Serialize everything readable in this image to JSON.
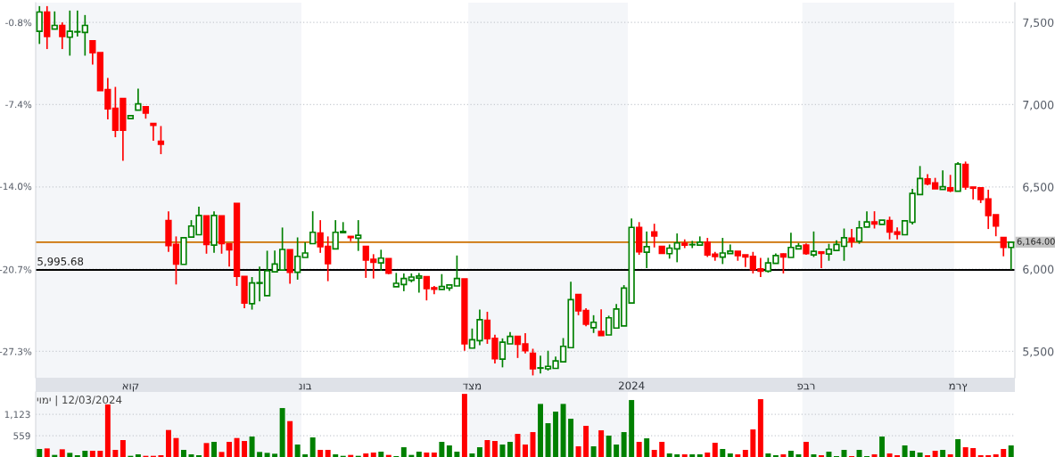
{
  "chart_data": [
    {
      "type": "candlestick",
      "annotations": [
        "יומי | 12/03/2024"
      ],
      "categories": [
        null,
        null,
        null,
        null,
        null,
        null,
        null,
        null,
        null,
        null,
        null,
        null,
        "אוק",
        null,
        null,
        null,
        null,
        null,
        null,
        null,
        null,
        null,
        null,
        null,
        null,
        null,
        null,
        null,
        null,
        null,
        null,
        null,
        null,
        null,
        null,
        "נוב",
        null,
        null,
        null,
        null,
        null,
        null,
        null,
        null,
        null,
        null,
        null,
        null,
        null,
        null,
        null,
        null,
        null,
        null,
        null,
        null,
        null,
        "דצמ",
        null,
        null,
        null,
        null,
        null,
        null,
        null,
        null,
        null,
        null,
        null,
        null,
        null,
        null,
        null,
        null,
        null,
        null,
        null,
        null,
        "2024",
        null,
        null,
        null,
        null,
        null,
        null,
        null,
        null,
        null,
        null,
        null,
        null,
        null,
        null,
        null,
        null,
        null,
        null,
        null,
        null,
        null,
        null,
        "פבר",
        null,
        null,
        null,
        null,
        null,
        null,
        null,
        null,
        null,
        null,
        null,
        null,
        null,
        null,
        null,
        null,
        null,
        null,
        null,
        "מרץ",
        null,
        null,
        null,
        null,
        null,
        null,
        null
      ],
      "ohlc": [
        [
          7446,
          7599,
          7369,
          7563
        ],
        [
          7563,
          7599,
          7338,
          7414
        ],
        [
          7460,
          7567,
          7460,
          7482
        ],
        [
          7482,
          7500,
          7338,
          7414
        ],
        [
          7410,
          7572,
          7298,
          7446
        ],
        [
          7442,
          7572,
          7414,
          7444
        ],
        [
          7439,
          7545,
          7298,
          7482
        ],
        [
          7388,
          7388,
          7244,
          7316
        ],
        [
          7316,
          7316,
          7086,
          7086
        ],
        [
          7091,
          7162,
          6910,
          6974
        ],
        [
          6978,
          7108,
          6802,
          6845
        ],
        [
          7037,
          7037,
          6659,
          6845
        ],
        [
          6915,
          6933,
          6915,
          6933
        ],
        [
          6967,
          7097,
          6967,
          7005
        ],
        [
          6987,
          6987,
          6915,
          6949
        ],
        [
          6886,
          6886,
          6780,
          6874
        ],
        [
          6778,
          6870,
          6699,
          6760
        ],
        [
          6296,
          6352,
          6105,
          6143
        ],
        [
          6150,
          6199,
          5907,
          6031
        ],
        [
          6029,
          6191,
          6029,
          6191
        ],
        [
          6195,
          6298,
          6195,
          6262
        ],
        [
          6209,
          6380,
          6209,
          6326
        ],
        [
          6324,
          6324,
          6094,
          6150
        ],
        [
          6146,
          6352,
          6099,
          6326
        ],
        [
          6324,
          6324,
          6094,
          6155
        ],
        [
          6155,
          6155,
          6015,
          6118
        ],
        [
          6400,
          6400,
          5898,
          5956
        ],
        [
          5956,
          5956,
          5763,
          5794
        ],
        [
          5790,
          5952,
          5754,
          5916
        ],
        [
          5914,
          6015,
          5804,
          5918
        ],
        [
          5839,
          6112,
          5839,
          5990
        ],
        [
          5984,
          6113,
          5984,
          6031
        ],
        [
          5995,
          6253,
          5995,
          6120
        ],
        [
          6118,
          6118,
          5911,
          5981
        ],
        [
          5981,
          6193,
          5936,
          6078
        ],
        [
          6071,
          6163,
          6071,
          6098
        ],
        [
          6155,
          6352,
          6155,
          6224
        ],
        [
          6219,
          6298,
          6099,
          6136
        ],
        [
          6138,
          6199,
          5927,
          6033
        ],
        [
          6123,
          6298,
          6123,
          6224
        ],
        [
          6222,
          6286,
          6222,
          6229
        ],
        [
          6199,
          6199,
          6170,
          6192
        ],
        [
          6188,
          6298,
          6111,
          6206
        ],
        [
          6138,
          6138,
          5947,
          6055
        ],
        [
          6060,
          6091,
          5943,
          6042
        ],
        [
          6038,
          6118,
          5990,
          6067
        ],
        [
          6064,
          6064,
          5969,
          5976
        ],
        [
          5893,
          5977,
          5893,
          5914
        ],
        [
          5907,
          5974,
          5866,
          5943
        ],
        [
          5932,
          5974,
          5920,
          5952
        ],
        [
          5946,
          5977,
          5857,
          5958
        ],
        [
          5954,
          5954,
          5810,
          5882
        ],
        [
          5887,
          5898,
          5848,
          5878
        ],
        [
          5877,
          5970,
          5877,
          5894
        ],
        [
          5885,
          5904,
          5868,
          5904
        ],
        [
          5898,
          6083,
          5898,
          5943
        ],
        [
          5941,
          5941,
          5504,
          5546
        ],
        [
          5520,
          5639,
          5520,
          5571
        ],
        [
          5565,
          5754,
          5538,
          5693
        ],
        [
          5689,
          5741,
          5546,
          5578
        ],
        [
          5579,
          5601,
          5426,
          5455
        ],
        [
          5453,
          5579,
          5403,
          5556
        ],
        [
          5546,
          5617,
          5546,
          5591
        ],
        [
          5591,
          5591,
          5460,
          5544
        ],
        [
          5546,
          5611,
          5487,
          5504
        ],
        [
          5489,
          5516,
          5354,
          5394
        ],
        [
          5398,
          5474,
          5366,
          5400
        ],
        [
          5394,
          5504,
          5383,
          5409
        ],
        [
          5397,
          5469,
          5397,
          5442
        ],
        [
          5437,
          5581,
          5437,
          5531
        ],
        [
          5523,
          5923,
          5523,
          5815
        ],
        [
          5846,
          5846,
          5720,
          5747
        ],
        [
          5749,
          5763,
          5653,
          5666
        ],
        [
          5644,
          5720,
          5612,
          5677
        ],
        [
          5621,
          5756,
          5597,
          5597
        ],
        [
          5600,
          5717,
          5600,
          5704
        ],
        [
          5642,
          5788,
          5642,
          5758
        ],
        [
          5655,
          5903,
          5655,
          5885
        ],
        [
          5794,
          6308,
          5794,
          6254
        ],
        [
          6254,
          6286,
          6087,
          6105
        ],
        [
          6103,
          6229,
          6006,
          6137
        ],
        [
          6227,
          6276,
          6132,
          6202
        ],
        [
          6138,
          6138,
          6096,
          6096
        ],
        [
          6094,
          6150,
          6064,
          6128
        ],
        [
          6123,
          6217,
          6042,
          6159
        ],
        [
          6157,
          6181,
          6128,
          6146
        ],
        [
          6148,
          6172,
          6128,
          6150
        ],
        [
          6146,
          6199,
          6146,
          6164
        ],
        [
          6164,
          6190,
          6074,
          6087
        ],
        [
          6091,
          6105,
          6051,
          6077
        ],
        [
          6073,
          6190,
          6031,
          6098
        ],
        [
          6095,
          6150,
          6095,
          6110
        ],
        [
          6108,
          6108,
          6051,
          6083
        ],
        [
          6087,
          6087,
          6013,
          6074
        ],
        [
          6078,
          6105,
          5974,
          5997
        ],
        [
          6001,
          6069,
          5952,
          5988
        ],
        [
          5988,
          6069,
          5979,
          6038
        ],
        [
          6035,
          6096,
          6035,
          6083
        ],
        [
          6092,
          6096,
          5974,
          6074
        ],
        [
          6071,
          6222,
          6071,
          6132
        ],
        [
          6123,
          6159,
          6123,
          6141
        ],
        [
          6146,
          6157,
          6087,
          6094
        ],
        [
          6087,
          6229,
          6074,
          6108
        ],
        [
          6105,
          6105,
          6006,
          6096
        ],
        [
          6092,
          6154,
          6051,
          6121
        ],
        [
          6114,
          6175,
          6114,
          6150
        ],
        [
          6139,
          6247,
          6051,
          6191
        ],
        [
          6188,
          6244,
          6132,
          6168
        ],
        [
          6170,
          6294,
          6154,
          6251
        ],
        [
          6256,
          6352,
          6256,
          6287
        ],
        [
          6287,
          6352,
          6247,
          6274
        ],
        [
          6272,
          6298,
          6272,
          6298
        ],
        [
          6296,
          6319,
          6181,
          6226
        ],
        [
          6227,
          6254,
          6181,
          6213
        ],
        [
          6209,
          6294,
          6209,
          6294
        ],
        [
          6285,
          6488,
          6272,
          6460
        ],
        [
          6454,
          6627,
          6454,
          6551
        ],
        [
          6549,
          6578,
          6510,
          6519
        ],
        [
          6524,
          6555,
          6488,
          6488
        ],
        [
          6485,
          6600,
          6485,
          6501
        ],
        [
          6495,
          6573,
          6468,
          6477
        ],
        [
          6474,
          6650,
          6474,
          6639
        ],
        [
          6636,
          6654,
          6483,
          6499
        ],
        [
          6499,
          6499,
          6424,
          6492
        ],
        [
          6495,
          6495,
          6402,
          6424
        ],
        [
          6427,
          6483,
          6244,
          6326
        ],
        [
          6330,
          6330,
          6200,
          6263
        ],
        [
          6192,
          6192,
          6078,
          6132
        ],
        [
          6132,
          6164,
          5996,
          6164
        ]
      ],
      "colors": [
        "#008000",
        "#ff0000",
        "#008000",
        "#ff0000",
        "#008000",
        "#008000",
        "#008000",
        "#ff0000",
        "#ff0000",
        "#ff0000",
        "#ff0000",
        "#ff0000",
        "#008000",
        "#008000",
        "#ff0000",
        "#ff0000",
        "#ff0000",
        "#ff0000",
        "#ff0000",
        "#008000",
        "#008000",
        "#008000",
        "#ff0000",
        "#008000",
        "#ff0000",
        "#ff0000",
        "#ff0000",
        "#ff0000",
        "#008000",
        "#008000",
        "#008000",
        "#008000",
        "#008000",
        "#ff0000",
        "#008000",
        "#008000",
        "#008000",
        "#ff0000",
        "#ff0000",
        "#008000",
        "#008000",
        "#ff0000",
        "#008000",
        "#ff0000",
        "#ff0000",
        "#008000",
        "#ff0000",
        "#008000",
        "#008000",
        "#008000",
        "#008000",
        "#ff0000",
        "#ff0000",
        "#008000",
        "#008000",
        "#008000",
        "#ff0000",
        "#008000",
        "#008000",
        "#ff0000",
        "#ff0000",
        "#008000",
        "#008000",
        "#ff0000",
        "#ff0000",
        "#ff0000",
        "#008000",
        "#008000",
        "#008000",
        "#008000",
        "#008000",
        "#ff0000",
        "#ff0000",
        "#008000",
        "#ff0000",
        "#008000",
        "#008000",
        "#008000",
        "#008000",
        "#ff0000",
        "#008000",
        "#ff0000",
        "#ff0000",
        "#008000",
        "#008000",
        "#ff0000",
        "#008000",
        "#008000",
        "#ff0000",
        "#ff0000",
        "#008000",
        "#008000",
        "#ff0000",
        "#ff0000",
        "#ff0000",
        "#ff0000",
        "#008000",
        "#008000",
        "#ff0000",
        "#008000",
        "#008000",
        "#ff0000",
        "#008000",
        "#ff0000",
        "#008000",
        "#008000",
        "#008000",
        "#ff0000",
        "#008000",
        "#008000",
        "#ff0000",
        "#008000",
        "#ff0000",
        "#ff0000",
        "#008000",
        "#008000",
        "#008000",
        "#ff0000",
        "#ff0000",
        "#008000",
        "#ff0000",
        "#008000",
        "#ff0000",
        "#ff0000",
        "#ff0000",
        "#ff0000",
        "#ff0000",
        "#ff0000",
        "#008000"
      ],
      "ylim": [
        5340,
        7620
      ],
      "yticks": [
        {
          "value": 5500,
          "label": "5,500"
        },
        {
          "value": 6000,
          "label": "6,000"
        },
        {
          "value": 6500,
          "label": "6,500"
        },
        {
          "value": 7000,
          "label": "7,000"
        },
        {
          "value": 7500,
          "label": "7,500"
        }
      ],
      "y2lim": [
        -29.42,
        0.79
      ],
      "y2ticks": [
        {
          "value": -27.3,
          "label": "-27.3%"
        },
        {
          "value": -20.7,
          "label": "-20.7%"
        },
        {
          "value": -14.0,
          "label": "-14.0%"
        },
        {
          "value": -7.4,
          "label": "-7.4%"
        },
        {
          "value": -0.8,
          "label": "-0.8%"
        }
      ],
      "ref_lines": [
        {
          "axis": "y",
          "value": 6164,
          "label": "6,164.00",
          "color": "#cc7000"
        },
        {
          "axis": "y",
          "value": 5995.68,
          "label": "5,995.68",
          "color": "#000000"
        }
      ],
      "grid": "y"
    },
    {
      "type": "bar",
      "categories": [
        null,
        null,
        null,
        null,
        null,
        null,
        null,
        null,
        null,
        null,
        null,
        null,
        null,
        null,
        null,
        null,
        null,
        null,
        null,
        null,
        null,
        null,
        null,
        null,
        null,
        null,
        null,
        null,
        null,
        null,
        null,
        null,
        null,
        null,
        null,
        null,
        null,
        null,
        null,
        null,
        null,
        null,
        null,
        null,
        null,
        null,
        null,
        null,
        null,
        null,
        null,
        null,
        null,
        null,
        null,
        null,
        null,
        null,
        null,
        null,
        null,
        null,
        null,
        null,
        null,
        null,
        null,
        null,
        null,
        null,
        null,
        null,
        null,
        null,
        null,
        null,
        null,
        null,
        null,
        null,
        null,
        null,
        null,
        null,
        null,
        null,
        null,
        null,
        null,
        null,
        null,
        null,
        null,
        null,
        null,
        null,
        null,
        null,
        null,
        null,
        null,
        null,
        null,
        null,
        null,
        null,
        null,
        null,
        null,
        null,
        null,
        null,
        null,
        null,
        null,
        null,
        null,
        null,
        null,
        null,
        null,
        null,
        null,
        null,
        null,
        null,
        null,
        null,
        null
      ],
      "values": [
        211,
        226,
        55,
        203,
        109,
        47,
        164,
        164,
        164,
        1381,
        187,
        445,
        31,
        70,
        31,
        31,
        47,
        710,
        499,
        187,
        70,
        47,
        367,
        398,
        133,
        398,
        499,
        421,
        538,
        133,
        109,
        86,
        1287,
        944,
        328,
        70,
        515,
        187,
        187,
        70,
        31,
        55,
        31,
        94,
        117,
        140,
        55,
        23,
        257,
        55,
        140,
        117,
        117,
        398,
        304,
        140,
        1660,
        94,
        257,
        445,
        421,
        328,
        398,
        608,
        328,
        655,
        1396,
        889,
        1193,
        1396,
        1006,
        281,
        819,
        281,
        702,
        562,
        328,
        655,
        1498,
        398,
        491,
        187,
        398,
        94,
        70,
        70,
        70,
        70,
        117,
        374,
        211,
        94,
        70,
        187,
        725,
        1521,
        94,
        47,
        70,
        164,
        70,
        398,
        70,
        47,
        140,
        23,
        187,
        23,
        187,
        23,
        70,
        538,
        94,
        47,
        304,
        164,
        117,
        47,
        164,
        187,
        70,
        468,
        257,
        234,
        47,
        47,
        70,
        211,
        304
      ],
      "colors": [
        "#008000",
        "#ff0000",
        "#008000",
        "#ff0000",
        "#008000",
        "#008000",
        "#008000",
        "#ff0000",
        "#ff0000",
        "#ff0000",
        "#ff0000",
        "#ff0000",
        "#008000",
        "#008000",
        "#ff0000",
        "#ff0000",
        "#ff0000",
        "#ff0000",
        "#ff0000",
        "#008000",
        "#008000",
        "#008000",
        "#ff0000",
        "#008000",
        "#ff0000",
        "#ff0000",
        "#ff0000",
        "#ff0000",
        "#008000",
        "#008000",
        "#008000",
        "#008000",
        "#008000",
        "#ff0000",
        "#008000",
        "#008000",
        "#008000",
        "#ff0000",
        "#ff0000",
        "#008000",
        "#008000",
        "#ff0000",
        "#008000",
        "#ff0000",
        "#ff0000",
        "#008000",
        "#ff0000",
        "#008000",
        "#008000",
        "#008000",
        "#008000",
        "#ff0000",
        "#ff0000",
        "#008000",
        "#008000",
        "#008000",
        "#ff0000",
        "#008000",
        "#008000",
        "#ff0000",
        "#ff0000",
        "#008000",
        "#008000",
        "#ff0000",
        "#ff0000",
        "#ff0000",
        "#008000",
        "#008000",
        "#008000",
        "#008000",
        "#008000",
        "#ff0000",
        "#ff0000",
        "#008000",
        "#ff0000",
        "#008000",
        "#008000",
        "#008000",
        "#008000",
        "#ff0000",
        "#008000",
        "#ff0000",
        "#ff0000",
        "#008000",
        "#008000",
        "#ff0000",
        "#008000",
        "#008000",
        "#ff0000",
        "#ff0000",
        "#008000",
        "#008000",
        "#ff0000",
        "#ff0000",
        "#ff0000",
        "#ff0000",
        "#008000",
        "#008000",
        "#ff0000",
        "#008000",
        "#008000",
        "#ff0000",
        "#008000",
        "#ff0000",
        "#008000",
        "#008000",
        "#008000",
        "#ff0000",
        "#008000",
        "#008000",
        "#ff0000",
        "#008000",
        "#ff0000",
        "#ff0000",
        "#008000",
        "#008000",
        "#008000",
        "#ff0000",
        "#ff0000",
        "#008000",
        "#ff0000",
        "#008000",
        "#ff0000",
        "#ff0000",
        "#ff0000",
        "#ff0000",
        "#ff0000",
        "#ff0000",
        "#008000"
      ],
      "ylim": [
        0,
        1710
      ],
      "yticks": [
        559,
        {
          "value": 1123,
          "label": "1,123"
        }
      ],
      "tick_labels": "y",
      "grid": "y"
    }
  ]
}
